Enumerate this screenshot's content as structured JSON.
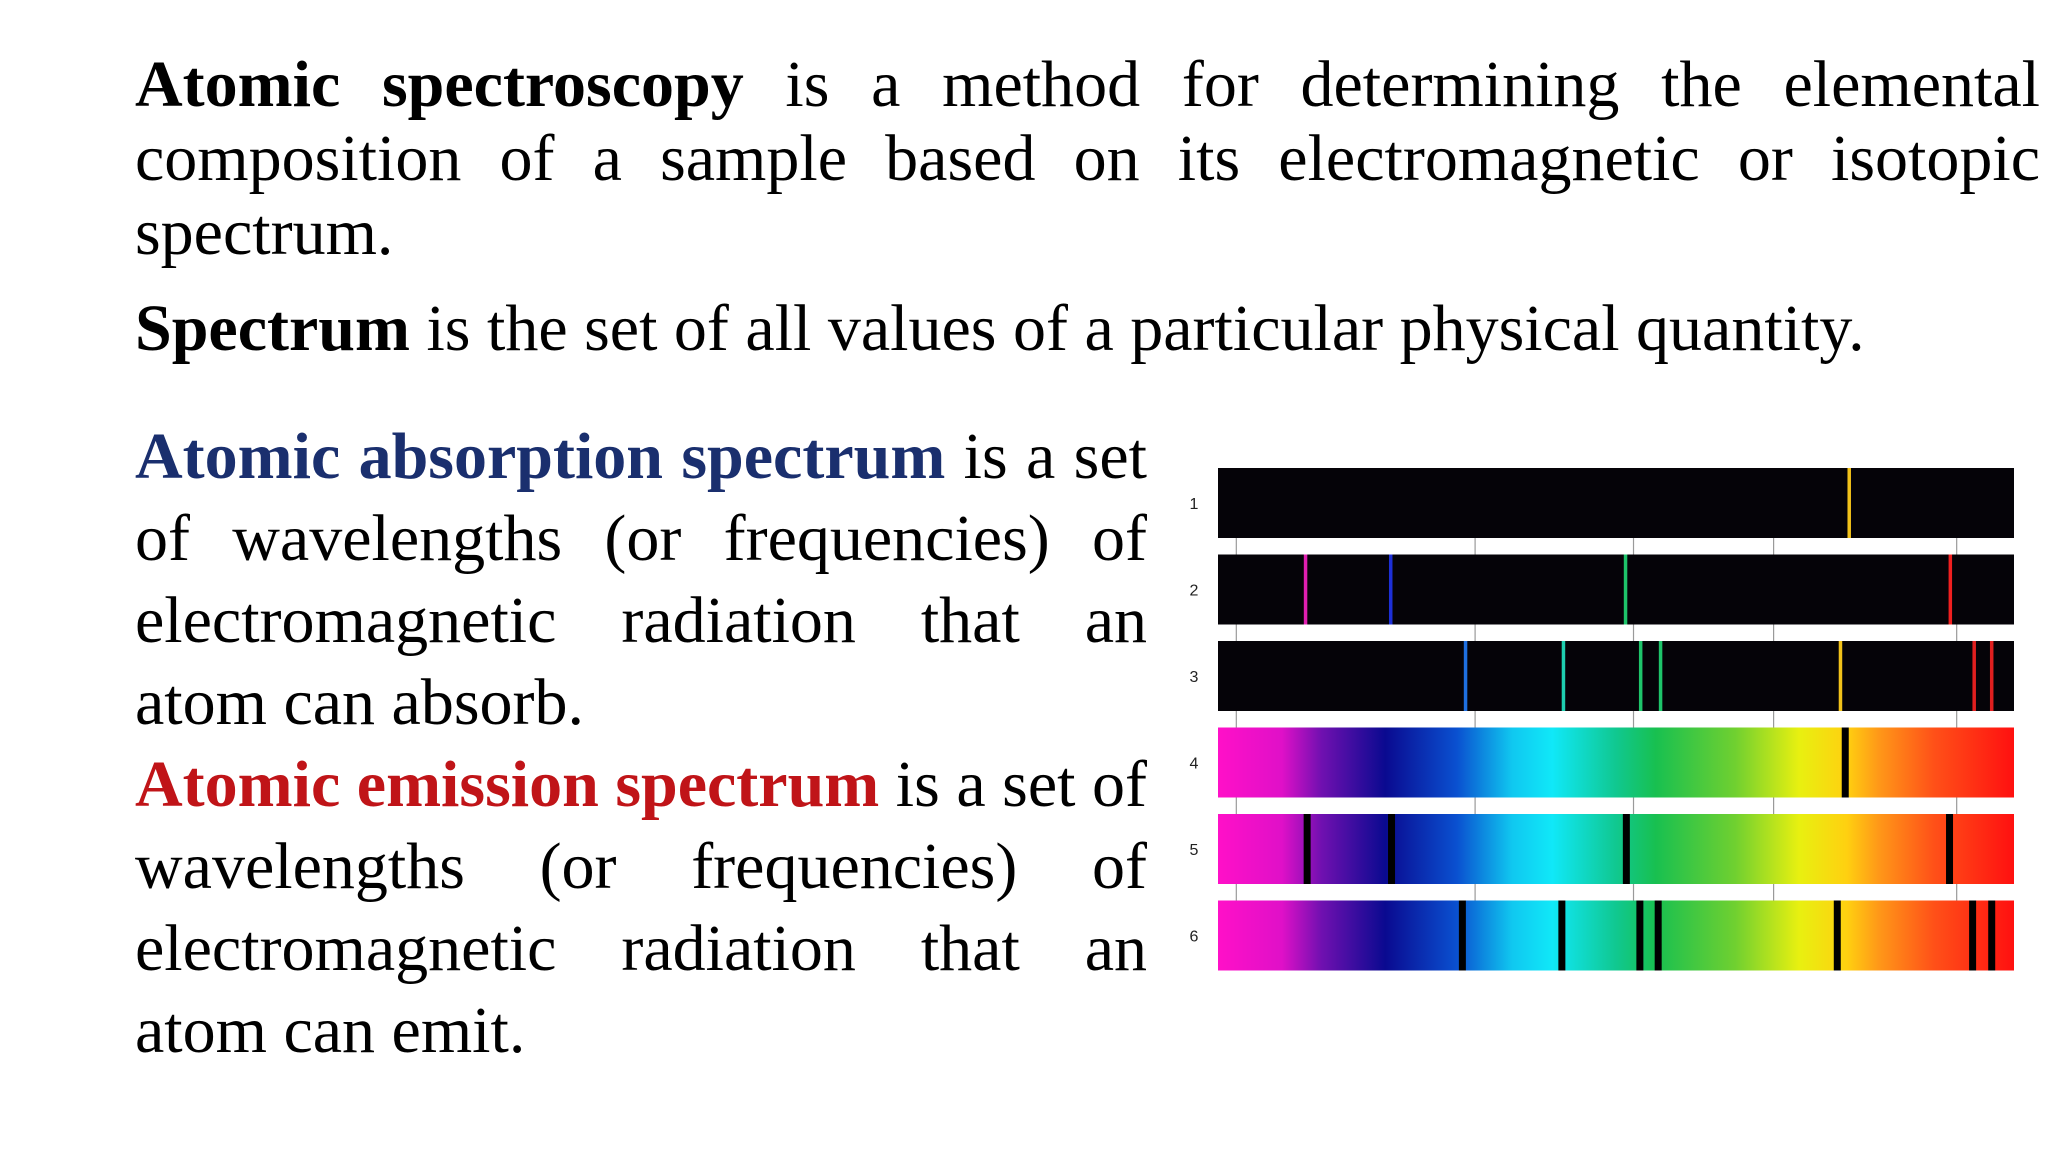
{
  "paragraphs": {
    "p1": {
      "term": "Atomic spectroscopy",
      "rest": " is a method for determining the elemental composition of a sample based on its electromagnetic or isotopic spectrum."
    },
    "p2": {
      "term": "Spectrum",
      "rest": " is the set of all values of a particular physical quantity."
    },
    "p3": {
      "term": "Atomic absorption spectrum",
      "rest": " is a set of wavelengths (or frequencies) of electromagnetic radiation that an atom can absorb."
    },
    "p4": {
      "term": "Atomic emission spectrum",
      "rest": " is a set of wavelengths (or frequencies) of electromagnetic radiation that an atom can emit."
    }
  },
  "colors": {
    "absorption_term": "#1a2f6e",
    "emission_term": "#c01418"
  },
  "spectra": {
    "rows": [
      {
        "label": "1",
        "type": "emission-lines",
        "lines": [
          {
            "pos": 0.793,
            "color": "#f2c21a"
          }
        ]
      },
      {
        "label": "2",
        "type": "emission-lines",
        "lines": [
          {
            "pos": 0.11,
            "color": "#e01fb0"
          },
          {
            "pos": 0.217,
            "color": "#1d2fd6"
          },
          {
            "pos": 0.512,
            "color": "#1ec46a"
          },
          {
            "pos": 0.92,
            "color": "#f01f1f"
          }
        ]
      },
      {
        "label": "3",
        "type": "emission-lines",
        "lines": [
          {
            "pos": 0.311,
            "color": "#1e6fe0"
          },
          {
            "pos": 0.434,
            "color": "#1ecfb0"
          },
          {
            "pos": 0.531,
            "color": "#1ec46a"
          },
          {
            "pos": 0.556,
            "color": "#1ec46a"
          },
          {
            "pos": 0.782,
            "color": "#f2c21a"
          },
          {
            "pos": 0.95,
            "color": "#e01f1f"
          },
          {
            "pos": 0.972,
            "color": "#e01f1f"
          }
        ]
      },
      {
        "label": "4",
        "type": "absorption-lines",
        "lines": [
          {
            "pos": 0.788
          }
        ]
      },
      {
        "label": "5",
        "type": "absorption-lines",
        "lines": [
          {
            "pos": 0.112
          },
          {
            "pos": 0.218
          },
          {
            "pos": 0.513
          },
          {
            "pos": 0.919
          }
        ]
      },
      {
        "label": "6",
        "type": "absorption-lines",
        "lines": [
          {
            "pos": 0.307
          },
          {
            "pos": 0.432
          },
          {
            "pos": 0.53
          },
          {
            "pos": 0.553
          },
          {
            "pos": 0.778
          },
          {
            "pos": 0.948
          },
          {
            "pos": 0.972
          }
        ]
      }
    ],
    "ticks": [
      0.023,
      0.323,
      0.522,
      0.698,
      0.928
    ]
  }
}
